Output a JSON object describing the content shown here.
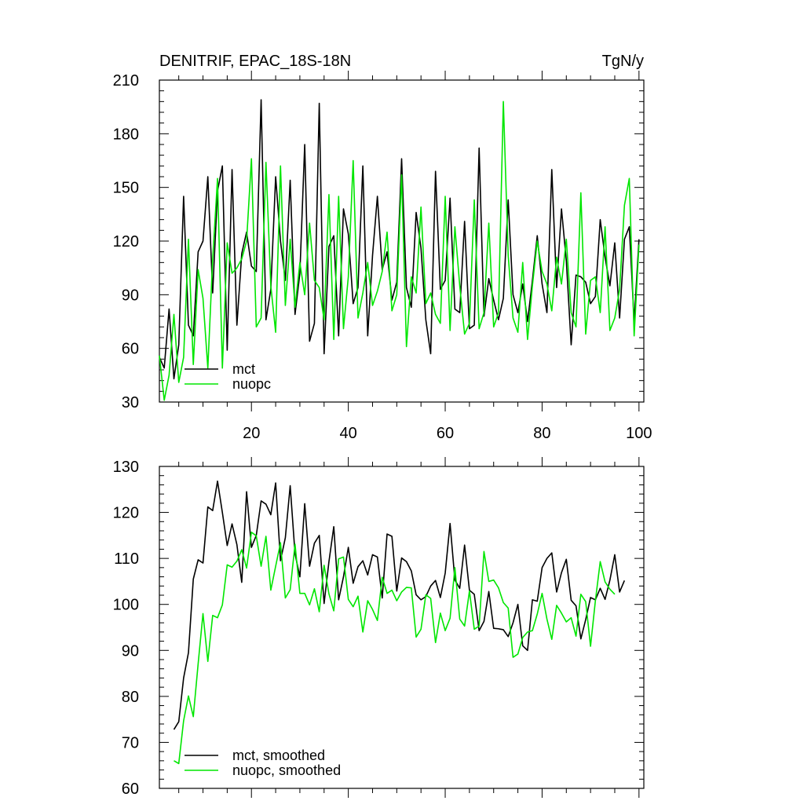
{
  "chart_data": [
    {
      "type": "line",
      "title": "DENITRIF, EPAC_18S-18N",
      "units": "TgN/y",
      "xlabel": "",
      "ylabel": "",
      "xlim": [
        1,
        101
      ],
      "ylim": [
        30,
        210
      ],
      "x_ticks": [
        20,
        40,
        60,
        80,
        100
      ],
      "y_ticks": [
        30,
        60,
        90,
        120,
        150,
        180,
        210
      ],
      "legend_position": "bottom-left",
      "x_start": 1,
      "series": [
        {
          "name": "mct",
          "color": "#000000",
          "values": [
            55,
            49,
            82,
            43,
            62,
            145,
            73,
            67,
            114,
            120,
            156,
            91,
            148,
            162,
            59,
            160,
            73,
            113,
            125,
            106,
            103,
            199,
            76,
            93,
            156,
            120,
            98,
            154,
            79,
            102,
            174,
            64,
            74,
            197,
            57,
            117,
            123,
            67,
            138,
            124,
            85,
            94,
            162,
            67,
            112,
            145,
            104,
            114,
            87,
            97,
            166,
            94,
            83,
            136,
            116,
            76,
            57,
            159,
            93,
            98,
            144,
            82,
            80,
            131,
            71,
            73,
            172,
            78,
            99,
            87,
            76,
            88,
            143,
            90,
            80,
            96,
            75,
            98,
            123,
            96,
            80,
            160,
            94,
            138,
            109,
            62,
            101,
            100,
            97,
            85,
            89,
            132,
            111,
            95,
            119,
            77,
            121,
            128,
            75,
            121
          ]
        },
        {
          "name": "nuopc",
          "color": "#00e600",
          "values": [
            56,
            31,
            45,
            79,
            41,
            55,
            121,
            51,
            104,
            88,
            49,
            110,
            155,
            49,
            119,
            102,
            105,
            110,
            120,
            166,
            72,
            77,
            164,
            95,
            69,
            162,
            84,
            121,
            83,
            108,
            90,
            130,
            98,
            94,
            76,
            146,
            65,
            145,
            71,
            100,
            165,
            77,
            91,
            108,
            84,
            92,
            103,
            125,
            81,
            90,
            157,
            61,
            100,
            91,
            139,
            85,
            91,
            79,
            74,
            145,
            70,
            128,
            95,
            68,
            74,
            143,
            71,
            80,
            130,
            72,
            80,
            198,
            112,
            77,
            69,
            108,
            65,
            95,
            120,
            103,
            96,
            81,
            111,
            96,
            121,
            80,
            72,
            147,
            68,
            98,
            100,
            80,
            128,
            70,
            77,
            93,
            140,
            155,
            67,
            118
          ]
        }
      ]
    },
    {
      "type": "line",
      "title": "",
      "xlabel": "",
      "ylabel": "",
      "xlim": [
        1,
        101
      ],
      "ylim": [
        60,
        130
      ],
      "x_ticks": [
        20,
        40,
        60,
        80,
        100
      ],
      "y_ticks": [
        60,
        70,
        80,
        90,
        100,
        110,
        120,
        130
      ],
      "legend_position": "bottom-left",
      "x_start": 4,
      "series": [
        {
          "name": "mct, smoothed",
          "color": "#000000",
          "values": [
            72.8,
            74.5,
            84,
            89.5,
            105.5,
            109.7,
            109,
            121.2,
            120.4,
            126.8,
            120,
            112.8,
            117.5,
            113,
            104.8,
            124.5,
            112.4,
            115,
            122.5,
            121.8,
            119.5,
            126.4,
            109.5,
            114.5,
            125.8,
            111,
            106,
            121.9,
            108.3,
            113.3,
            115,
            100.2,
            109.3,
            116.9,
            101,
            106,
            112.4,
            104.6,
            108.2,
            109.5,
            106.4,
            110.8,
            110.3,
            101.4,
            115.3,
            114.8,
            102.9,
            110.1,
            109.3,
            107.3,
            102.1,
            101,
            101.7,
            104,
            105.2,
            101.5,
            106.8,
            117.6,
            105.3,
            103.5,
            112.9,
            103.1,
            102.2,
            94.3,
            96.3,
            102.8,
            94.8,
            94.7,
            94.5,
            93,
            96,
            100,
            91,
            90,
            101,
            100.7,
            108,
            110,
            111.2,
            102.7,
            106.9,
            109.8,
            100.9,
            99.7,
            92.5,
            96.7,
            101.5,
            101,
            103.5,
            101.1,
            105.3,
            110.8,
            102.7,
            105.2
          ]
        },
        {
          "name": "nuopc, smoothed",
          "color": "#00e600",
          "values": [
            66,
            65.4,
            74.7,
            80.1,
            75.6,
            87.1,
            98,
            87.6,
            97.6,
            97.1,
            99.9,
            108.6,
            108.1,
            109.4,
            111.9,
            107.9,
            115.7,
            114.9,
            108.3,
            114.8,
            103.1,
            108.3,
            113.4,
            101.4,
            103.2,
            113.1,
            102.4,
            102.4,
            99.9,
            103.4,
            98.4,
            108.5,
            102.3,
            98.6,
            109.9,
            110.3,
            101.1,
            99.5,
            101.8,
            94,
            100.8,
            98.9,
            96.5,
            105.9,
            102.4,
            103.1,
            100.8,
            102.7,
            103.7,
            103.6,
            92.9,
            94.6,
            102.1,
            101.3,
            91.7,
            98.1,
            94.3,
            97,
            108,
            96.8,
            95.3,
            102.9,
            94.6,
            95.3,
            111.5,
            105,
            105.3,
            103.6,
            100.4,
            99.2,
            88.5,
            89.2,
            92.8,
            94,
            94.3,
            97.9,
            102.4,
            96.8,
            92.4,
            99.8,
            98.1,
            96.2,
            97.1,
            93.1,
            102.2,
            100.6,
            90.9,
            100.8,
            109.3,
            104.9,
            103.3,
            102.2
          ]
        }
      ]
    }
  ]
}
